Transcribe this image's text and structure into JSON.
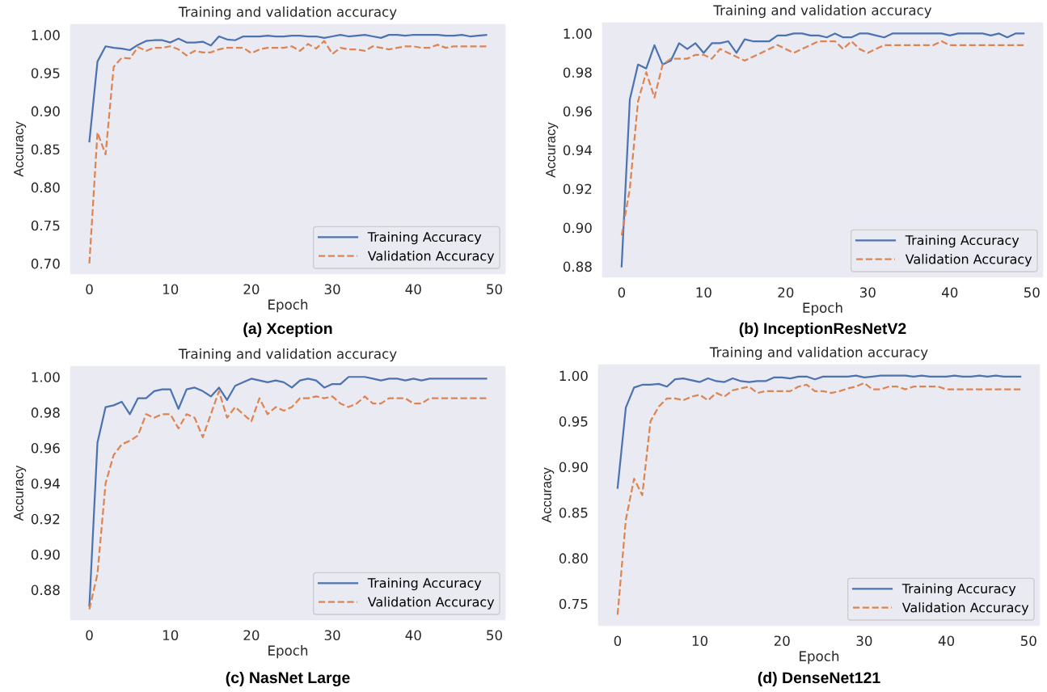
{
  "chart_data": [
    {
      "type": "line",
      "title": "Training and validation accuracy",
      "xlabel": "Epoch",
      "ylabel": "Accuracy",
      "annotations": [
        "(a) Xception"
      ],
      "x": [
        0,
        1,
        2,
        3,
        4,
        5,
        6,
        7,
        8,
        9,
        10,
        11,
        12,
        13,
        14,
        15,
        16,
        17,
        18,
        19,
        20,
        21,
        22,
        23,
        24,
        25,
        26,
        27,
        28,
        29,
        30,
        31,
        32,
        33,
        34,
        35,
        36,
        37,
        38,
        39,
        40,
        41,
        42,
        43,
        44,
        45,
        46,
        47,
        48,
        49
      ],
      "series": [
        {
          "name": "Training Accuracy",
          "color": "#4c72b0",
          "line_style": "solid",
          "values": [
            0.86,
            0.965,
            0.985,
            0.983,
            0.982,
            0.98,
            0.987,
            0.992,
            0.993,
            0.993,
            0.99,
            0.995,
            0.99,
            0.99,
            0.991,
            0.986,
            0.998,
            0.994,
            0.993,
            0.998,
            0.998,
            0.998,
            0.999,
            0.998,
            0.998,
            0.999,
            0.999,
            0.998,
            0.998,
            0.996,
            0.998,
            1.0,
            0.998,
            0.999,
            1.0,
            0.998,
            0.996,
            1.0,
            1.0,
            0.999,
            1.0,
            1.0,
            1.0,
            1.0,
            0.999,
            0.999,
            1.0,
            0.998,
            0.999,
            1.0
          ]
        },
        {
          "name": "Validation Accuracy",
          "color": "#dd8452",
          "line_style": "dashed",
          "values": [
            0.7,
            0.872,
            0.843,
            0.958,
            0.97,
            0.969,
            0.984,
            0.979,
            0.983,
            0.983,
            0.985,
            0.981,
            0.973,
            0.979,
            0.977,
            0.977,
            0.981,
            0.983,
            0.983,
            0.983,
            0.976,
            0.981,
            0.983,
            0.983,
            0.983,
            0.985,
            0.979,
            0.988,
            0.982,
            0.992,
            0.975,
            0.983,
            0.981,
            0.981,
            0.979,
            0.985,
            0.983,
            0.981,
            0.983,
            0.985,
            0.985,
            0.983,
            0.983,
            0.987,
            0.983,
            0.985,
            0.985,
            0.985,
            0.985,
            0.985
          ]
        }
      ],
      "xlim": [
        -2.45,
        51.45
      ],
      "xticks": [
        0,
        10,
        20,
        30,
        40,
        50
      ],
      "ylim": [
        0.685,
        1.015
      ],
      "yticks": [
        {
          "value": 0.7,
          "label": "0.70"
        },
        {
          "value": 0.75,
          "label": "0.75"
        },
        {
          "value": 0.8,
          "label": "0.80"
        },
        {
          "value": 0.85,
          "label": "0.85"
        },
        {
          "value": 0.9,
          "label": "0.90"
        },
        {
          "value": 0.95,
          "label": "0.95"
        },
        {
          "value": 1.0,
          "label": "1.00"
        }
      ],
      "grid": false,
      "legend": "lower right"
    },
    {
      "type": "line",
      "title": "Training and validation accuracy",
      "xlabel": "Epoch",
      "ylabel": "Accuracy",
      "annotations": [
        "(b) InceptionResNetV2"
      ],
      "x": [
        0,
        1,
        2,
        3,
        4,
        5,
        6,
        7,
        8,
        9,
        10,
        11,
        12,
        13,
        14,
        15,
        16,
        17,
        18,
        19,
        20,
        21,
        22,
        23,
        24,
        25,
        26,
        27,
        28,
        29,
        30,
        31,
        32,
        33,
        34,
        35,
        36,
        37,
        38,
        39,
        40,
        41,
        42,
        43,
        44,
        45,
        46,
        47,
        48,
        49
      ],
      "series": [
        {
          "name": "Training Accuracy",
          "color": "#4c72b0",
          "line_style": "solid",
          "values": [
            0.88,
            0.966,
            0.984,
            0.982,
            0.994,
            0.984,
            0.986,
            0.995,
            0.992,
            0.995,
            0.99,
            0.995,
            0.995,
            0.996,
            0.99,
            0.997,
            0.996,
            0.996,
            0.996,
            0.999,
            0.999,
            1.0,
            1.0,
            0.999,
            0.999,
            0.998,
            1.0,
            0.998,
            0.998,
            1.0,
            1.0,
            0.999,
            0.998,
            1.0,
            1.0,
            1.0,
            1.0,
            1.0,
            1.0,
            1.0,
            0.999,
            1.0,
            1.0,
            1.0,
            1.0,
            0.999,
            1.0,
            0.998,
            1.0,
            1.0
          ]
        },
        {
          "name": "Validation Accuracy",
          "color": "#dd8452",
          "line_style": "dashed",
          "values": [
            0.896,
            0.92,
            0.965,
            0.98,
            0.967,
            0.984,
            0.987,
            0.987,
            0.987,
            0.989,
            0.989,
            0.987,
            0.992,
            0.99,
            0.988,
            0.986,
            0.988,
            0.99,
            0.992,
            0.994,
            0.992,
            0.99,
            0.992,
            0.994,
            0.996,
            0.996,
            0.996,
            0.992,
            0.996,
            0.992,
            0.99,
            0.992,
            0.994,
            0.994,
            0.994,
            0.994,
            0.994,
            0.994,
            0.994,
            0.996,
            0.994,
            0.994,
            0.994,
            0.994,
            0.994,
            0.994,
            0.994,
            0.994,
            0.994,
            0.994
          ]
        }
      ],
      "xlim": [
        -2.45,
        51.45
      ],
      "xticks": [
        0,
        10,
        20,
        30,
        40,
        50
      ],
      "ylim": [
        0.874,
        1.006
      ],
      "yticks": [
        {
          "value": 0.88,
          "label": "0.88"
        },
        {
          "value": 0.9,
          "label": "0.90"
        },
        {
          "value": 0.92,
          "label": "0.92"
        },
        {
          "value": 0.94,
          "label": "0.94"
        },
        {
          "value": 0.96,
          "label": "0.96"
        },
        {
          "value": 0.98,
          "label": "0.98"
        },
        {
          "value": 1.0,
          "label": "1.00"
        }
      ],
      "grid": false,
      "legend": "lower right"
    },
    {
      "type": "line",
      "title": "Training and validation accuracy",
      "xlabel": "Epoch",
      "ylabel": "Accuracy",
      "annotations": [
        "(c) NasNet Large"
      ],
      "x": [
        0,
        1,
        2,
        3,
        4,
        5,
        6,
        7,
        8,
        9,
        10,
        11,
        12,
        13,
        14,
        15,
        16,
        17,
        18,
        19,
        20,
        21,
        22,
        23,
        24,
        25,
        26,
        27,
        28,
        29,
        30,
        31,
        32,
        33,
        34,
        35,
        36,
        37,
        38,
        39,
        40,
        41,
        42,
        43,
        44,
        45,
        46,
        47,
        48,
        49
      ],
      "series": [
        {
          "name": "Training Accuracy",
          "color": "#4c72b0",
          "line_style": "solid",
          "values": [
            0.871,
            0.963,
            0.983,
            0.984,
            0.986,
            0.979,
            0.988,
            0.988,
            0.992,
            0.993,
            0.993,
            0.982,
            0.993,
            0.994,
            0.992,
            0.989,
            0.994,
            0.987,
            0.995,
            0.997,
            0.999,
            0.998,
            0.997,
            0.998,
            0.997,
            0.994,
            0.998,
            0.999,
            0.998,
            0.994,
            0.996,
            0.996,
            1.0,
            1.0,
            1.0,
            0.999,
            0.998,
            0.999,
            0.999,
            0.998,
            0.999,
            0.998,
            0.999,
            0.999,
            0.999,
            0.999,
            0.999,
            0.999,
            0.999,
            0.999
          ]
        },
        {
          "name": "Validation Accuracy",
          "color": "#dd8452",
          "line_style": "dashed",
          "values": [
            0.869,
            0.889,
            0.94,
            0.956,
            0.962,
            0.964,
            0.967,
            0.979,
            0.977,
            0.979,
            0.979,
            0.971,
            0.979,
            0.977,
            0.966,
            0.979,
            0.992,
            0.977,
            0.983,
            0.979,
            0.975,
            0.988,
            0.979,
            0.983,
            0.981,
            0.983,
            0.988,
            0.988,
            0.989,
            0.988,
            0.989,
            0.985,
            0.983,
            0.985,
            0.989,
            0.985,
            0.985,
            0.988,
            0.988,
            0.988,
            0.985,
            0.985,
            0.988,
            0.988,
            0.988,
            0.988,
            0.988,
            0.988,
            0.988,
            0.988
          ]
        }
      ],
      "xlim": [
        -2.45,
        51.45
      ],
      "xticks": [
        0,
        10,
        20,
        30,
        40,
        50
      ],
      "ylim": [
        0.8625,
        1.0065
      ],
      "yticks": [
        {
          "value": 0.88,
          "label": "0.88"
        },
        {
          "value": 0.9,
          "label": "0.90"
        },
        {
          "value": 0.92,
          "label": "0.92"
        },
        {
          "value": 0.94,
          "label": "0.94"
        },
        {
          "value": 0.96,
          "label": "0.96"
        },
        {
          "value": 0.98,
          "label": "0.98"
        },
        {
          "value": 1.0,
          "label": "1.00"
        }
      ],
      "grid": false,
      "legend": "lower right"
    },
    {
      "type": "line",
      "title": "Training and validation accuracy",
      "xlabel": "Epoch",
      "ylabel": "Accuracy",
      "annotations": [
        "(d) DenseNet121"
      ],
      "x": [
        0,
        1,
        2,
        3,
        4,
        5,
        6,
        7,
        8,
        9,
        10,
        11,
        12,
        13,
        14,
        15,
        16,
        17,
        18,
        19,
        20,
        21,
        22,
        23,
        24,
        25,
        26,
        27,
        28,
        29,
        30,
        31,
        32,
        33,
        34,
        35,
        36,
        37,
        38,
        39,
        40,
        41,
        42,
        43,
        44,
        45,
        46,
        47,
        48,
        49
      ],
      "series": [
        {
          "name": "Training Accuracy",
          "color": "#4c72b0",
          "line_style": "solid",
          "values": [
            0.877,
            0.965,
            0.987,
            0.99,
            0.99,
            0.991,
            0.988,
            0.996,
            0.997,
            0.995,
            0.993,
            0.997,
            0.994,
            0.993,
            0.997,
            0.994,
            0.993,
            0.994,
            0.994,
            0.998,
            0.998,
            0.997,
            0.999,
            0.999,
            0.996,
            0.999,
            0.999,
            0.999,
            0.999,
            1.0,
            0.998,
            0.999,
            1.0,
            1.0,
            1.0,
            1.0,
            0.999,
            1.0,
            0.999,
            0.999,
            0.999,
            1.0,
            0.999,
            0.999,
            1.0,
            0.999,
            1.0,
            0.999,
            0.999,
            0.999
          ]
        },
        {
          "name": "Validation Accuracy",
          "color": "#dd8452",
          "line_style": "dashed",
          "values": [
            0.738,
            0.842,
            0.887,
            0.869,
            0.95,
            0.966,
            0.975,
            0.975,
            0.973,
            0.977,
            0.979,
            0.973,
            0.981,
            0.977,
            0.984,
            0.986,
            0.988,
            0.981,
            0.983,
            0.983,
            0.983,
            0.983,
            0.988,
            0.99,
            0.983,
            0.983,
            0.981,
            0.983,
            0.986,
            0.988,
            0.992,
            0.985,
            0.985,
            0.988,
            0.988,
            0.985,
            0.988,
            0.988,
            0.988,
            0.988,
            0.985,
            0.985,
            0.985,
            0.985,
            0.985,
            0.985,
            0.985,
            0.985,
            0.985,
            0.985
          ]
        }
      ],
      "xlim": [
        -2.45,
        51.45
      ],
      "xticks": [
        0,
        10,
        20,
        30,
        40,
        50
      ],
      "ylim": [
        0.725,
        1.013
      ],
      "yticks": [
        {
          "value": 0.75,
          "label": "0.75"
        },
        {
          "value": 0.8,
          "label": "0.80"
        },
        {
          "value": 0.85,
          "label": "0.85"
        },
        {
          "value": 0.9,
          "label": "0.90"
        },
        {
          "value": 0.95,
          "label": "0.95"
        },
        {
          "value": 1.0,
          "label": "1.00"
        }
      ],
      "grid": false,
      "legend": "lower right"
    }
  ]
}
